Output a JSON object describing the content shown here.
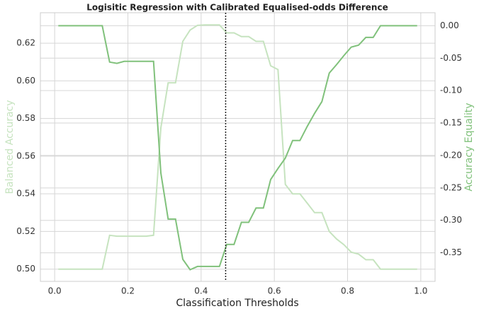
{
  "chart_data": {
    "type": "line",
    "title": "Logisitic Regression with Calibrated Equalised-odds Difference",
    "xlabel": "Classification Thresholds",
    "ylabel": "Balanced Accuracy",
    "y2label": "Accuracy Equality",
    "ylabel_color": "#c6e3bf",
    "y2label_color": "#80c17b",
    "grid": true,
    "vline": 0.467,
    "x": [
      0.01,
      0.03,
      0.05,
      0.07,
      0.09,
      0.11,
      0.13,
      0.15,
      0.17,
      0.19,
      0.21,
      0.23,
      0.25,
      0.27,
      0.29,
      0.31,
      0.33,
      0.35,
      0.37,
      0.39,
      0.41,
      0.43,
      0.45,
      0.47,
      0.49,
      0.51,
      0.53,
      0.55,
      0.57,
      0.59,
      0.61,
      0.63,
      0.65,
      0.67,
      0.69,
      0.71,
      0.73,
      0.75,
      0.77,
      0.79,
      0.81,
      0.83,
      0.85,
      0.87,
      0.89,
      0.91,
      0.93,
      0.95,
      0.97,
      0.99
    ],
    "series": [
      {
        "color": "#c6e3bf",
        "values": [
          0.5,
          0.5,
          0.5,
          0.5,
          0.5,
          0.5,
          0.5,
          0.518,
          0.5175,
          0.5175,
          0.5175,
          0.5175,
          0.5175,
          0.518,
          0.575,
          0.599,
          0.599,
          0.621,
          0.627,
          0.6295,
          0.6297,
          0.6297,
          0.6297,
          0.6255,
          0.6255,
          0.6235,
          0.6235,
          0.621,
          0.621,
          0.608,
          0.606,
          0.545,
          0.54,
          0.54,
          0.535,
          0.53,
          0.53,
          0.52,
          0.516,
          0.513,
          0.509,
          0.508,
          0.505,
          0.505,
          0.5,
          0.5,
          0.5,
          0.5,
          0.5,
          0.5
        ]
      },
      {
        "color": "#80c17b",
        "axis": "y2",
        "values": [
          0,
          0,
          0,
          0,
          0,
          0,
          0,
          -0.056,
          -0.058,
          -0.055,
          -0.055,
          -0.055,
          -0.055,
          -0.055,
          -0.227,
          -0.298,
          -0.298,
          -0.36,
          -0.376,
          -0.371,
          -0.371,
          -0.371,
          -0.371,
          -0.337,
          -0.337,
          -0.303,
          -0.303,
          -0.281,
          -0.281,
          -0.237,
          -0.22,
          -0.204,
          -0.177,
          -0.177,
          -0.155,
          -0.135,
          -0.117,
          -0.073,
          -0.06,
          -0.046,
          -0.033,
          -0.03,
          -0.018,
          -0.018,
          0,
          0,
          0,
          0,
          0,
          0
        ]
      }
    ],
    "xlim": [
      -0.039,
      1.039
    ],
    "xticks": [
      {
        "value": 0,
        "label": "0.0"
      },
      0.2,
      0.4,
      0.6,
      0.8,
      {
        "value": 1,
        "label": "1.0"
      }
    ],
    "ylim": [
      0.4935,
      0.6362
    ],
    "yticks": [
      {
        "value": 0.5,
        "label": "0.50"
      },
      0.52,
      0.54,
      0.56,
      0.58,
      {
        "value": 0.6,
        "label": "0.60"
      },
      0.62
    ],
    "y2lim": [
      -0.394,
      0.02
    ],
    "y2ticks": [
      {
        "value": 0,
        "label": "0.00"
      },
      -0.05,
      {
        "value": -0.1,
        "label": "-0.10"
      },
      -0.15,
      {
        "value": -0.2,
        "label": "-0.20"
      },
      -0.25,
      {
        "value": -0.3,
        "label": "-0.30"
      },
      -0.35
    ]
  }
}
